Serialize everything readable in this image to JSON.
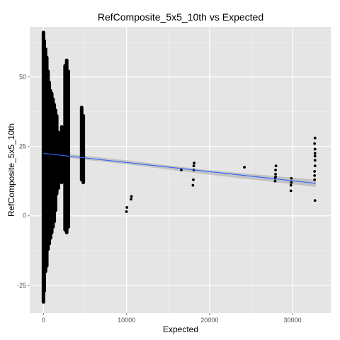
{
  "chart_data": {
    "type": "scatter",
    "title": "RefComposite_5x5_10th vs Expected",
    "xlabel": "Expected",
    "ylabel": "RefComposite_5x5_10th",
    "xlim": [
      -1650,
      34600
    ],
    "ylim": [
      -35,
      68
    ],
    "x_ticks": [
      0,
      10000,
      20000,
      30000
    ],
    "x_tick_labels": [
      "0",
      "10000",
      "20000",
      "30000"
    ],
    "y_ticks": [
      -25,
      0,
      25,
      50
    ],
    "y_tick_labels": [
      "-25",
      "0",
      "25",
      "50"
    ],
    "grid": true,
    "background": "#e5e5e5",
    "point_color": "#000000",
    "fit_color": "#3366ff",
    "band_color": "#999999",
    "columns": [
      {
        "x": 0,
        "ymin": -31,
        "ymax": 66
      },
      {
        "x": 100,
        "ymin": -27,
        "ymax": 63
      },
      {
        "x": 250,
        "ymin": -20,
        "ymax": 60
      },
      {
        "x": 400,
        "ymin": -18,
        "ymax": 57
      },
      {
        "x": 550,
        "ymin": -12,
        "ymax": 52
      },
      {
        "x": 700,
        "ymin": -10,
        "ymax": 48
      },
      {
        "x": 850,
        "ymin": -8,
        "ymax": 45
      },
      {
        "x": 1000,
        "ymin": -6,
        "ymax": 44
      },
      {
        "x": 1150,
        "ymin": -4,
        "ymax": 42
      },
      {
        "x": 1300,
        "ymin": -2,
        "ymax": 40
      },
      {
        "x": 1450,
        "ymin": 2,
        "ymax": 38
      },
      {
        "x": 1600,
        "ymin": 8,
        "ymax": 36
      },
      {
        "x": 1800,
        "ymin": 10,
        "ymax": 30
      },
      {
        "x": 2200,
        "ymin": 12,
        "ymax": 32
      },
      {
        "x": 2600,
        "ymin": -5,
        "ymax": 54
      },
      {
        "x": 2800,
        "ymin": -6,
        "ymax": 56
      },
      {
        "x": 3000,
        "ymin": -4,
        "ymax": 52
      },
      {
        "x": 4600,
        "ymin": 13,
        "ymax": 39
      },
      {
        "x": 4800,
        "ymin": 12,
        "ymax": 36
      }
    ],
    "points": [
      {
        "x": 10000,
        "y": 1.5
      },
      {
        "x": 10050,
        "y": 3.0
      },
      {
        "x": 10550,
        "y": 6.0
      },
      {
        "x": 10600,
        "y": 7.0
      },
      {
        "x": 16600,
        "y": 16.5
      },
      {
        "x": 18000,
        "y": 11.0
      },
      {
        "x": 18050,
        "y": 13.0
      },
      {
        "x": 18100,
        "y": 16.5
      },
      {
        "x": 18100,
        "y": 18.0
      },
      {
        "x": 18150,
        "y": 19.0
      },
      {
        "x": 24200,
        "y": 17.5
      },
      {
        "x": 27900,
        "y": 12.5
      },
      {
        "x": 27900,
        "y": 13.5
      },
      {
        "x": 27950,
        "y": 15.0
      },
      {
        "x": 27950,
        "y": 16.5
      },
      {
        "x": 28000,
        "y": 18.0
      },
      {
        "x": 27950,
        "y": 14.0
      },
      {
        "x": 29800,
        "y": 9.0
      },
      {
        "x": 29800,
        "y": 11.0
      },
      {
        "x": 29850,
        "y": 12.0
      },
      {
        "x": 29850,
        "y": 13.5
      },
      {
        "x": 32700,
        "y": 5.5
      },
      {
        "x": 32650,
        "y": 13.0
      },
      {
        "x": 32650,
        "y": 14.5
      },
      {
        "x": 32650,
        "y": 16.0
      },
      {
        "x": 32700,
        "y": 18.0
      },
      {
        "x": 32700,
        "y": 20.0
      },
      {
        "x": 32700,
        "y": 21.5
      },
      {
        "x": 32700,
        "y": 22.5
      },
      {
        "x": 32700,
        "y": 24.0
      },
      {
        "x": 32650,
        "y": 26.0
      },
      {
        "x": 32700,
        "y": 28.0
      }
    ],
    "fit_line": {
      "x": [
        0,
        32800
      ],
      "y": [
        22.5,
        11.7
      ]
    },
    "confidence_band": {
      "x": [
        0,
        10000,
        20000,
        32800
      ],
      "lower": [
        21.8,
        18.6,
        14.8,
        10.4
      ],
      "upper": [
        23.2,
        20.0,
        16.4,
        13.0
      ]
    }
  }
}
